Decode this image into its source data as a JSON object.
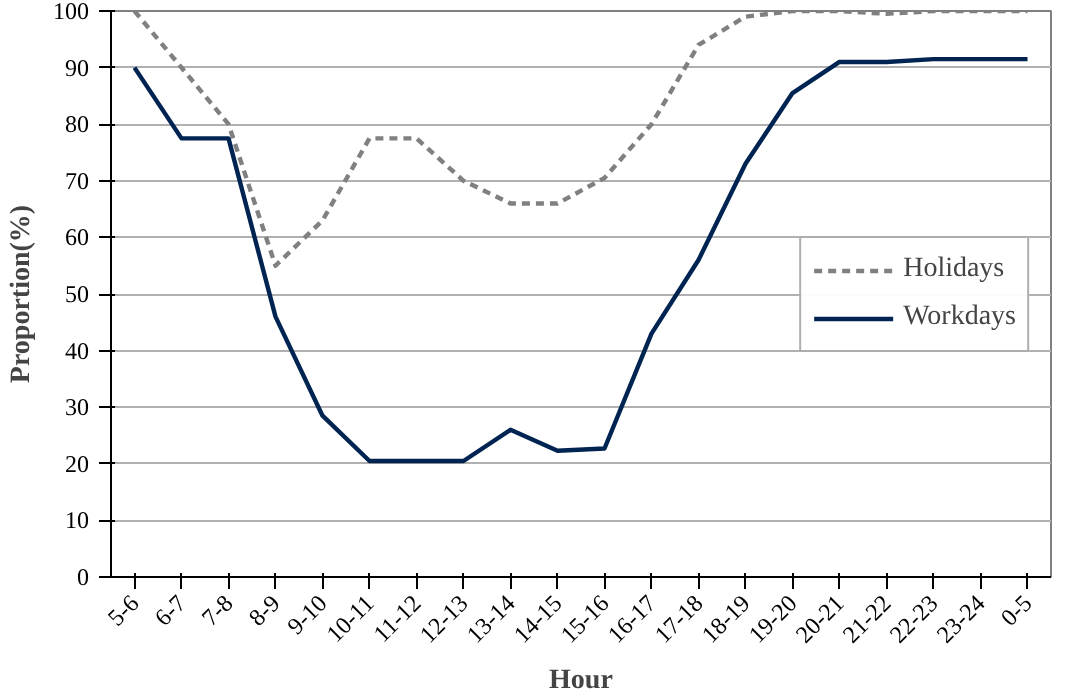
{
  "chart_data": {
    "type": "line",
    "xlabel": "Hour",
    "ylabel": "Proportion(%)",
    "categories": [
      "5-6",
      "6-7",
      "7-8",
      "8-9",
      "9-10",
      "10-11",
      "11-12",
      "12-13",
      "13-14",
      "14-15",
      "15-16",
      "16-17",
      "17-18",
      "18-19",
      "19-20",
      "20-21",
      "21-22",
      "22-23",
      "23-24",
      "0-5"
    ],
    "series": [
      {
        "name": "Holidays",
        "color": "#808080",
        "line_style": "dashed",
        "values": [
          100,
          90,
          80,
          55,
          63,
          77.5,
          77.5,
          70,
          66,
          66,
          70.5,
          80,
          94,
          99,
          100,
          100,
          99.5,
          100,
          100,
          100
        ]
      },
      {
        "name": "Workdays",
        "color": "#002452",
        "line_style": "solid",
        "values": [
          90,
          77.5,
          77.5,
          46,
          28.5,
          20.5,
          20.5,
          20.5,
          26,
          22.3,
          22.7,
          43,
          56,
          73,
          85.5,
          91,
          91,
          91.5,
          91.5,
          91.5
        ]
      }
    ],
    "ylim": [
      0,
      100
    ],
    "yticks": [
      0,
      10,
      20,
      30,
      40,
      50,
      60,
      70,
      80,
      90,
      100
    ],
    "grid": "y",
    "legend": "right",
    "marker": "none"
  }
}
